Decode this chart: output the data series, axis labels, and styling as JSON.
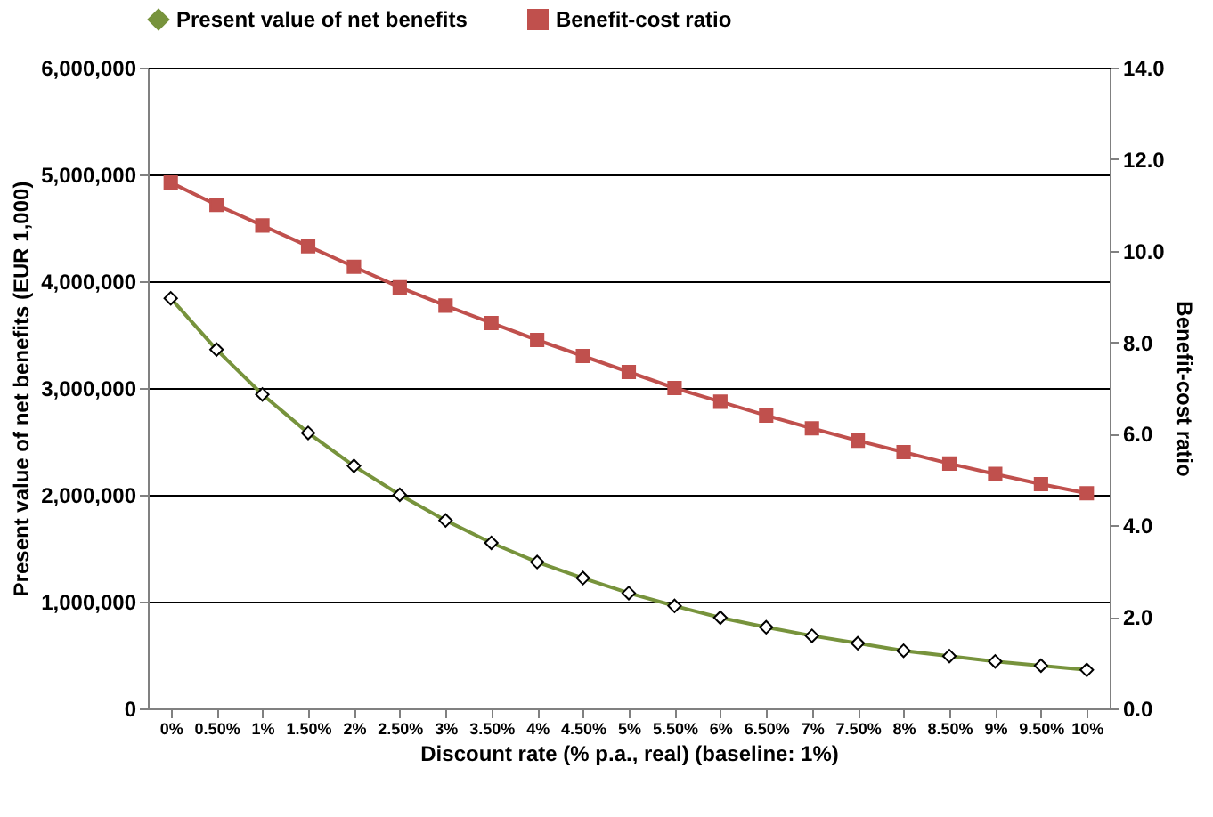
{
  "chart_data": {
    "type": "line",
    "xlabel": "Discount rate (% p.a., real) (baseline: 1%)",
    "ylabel": "Present value of net benefits (EUR 1,000)",
    "y2label": "Benefit-cost ratio",
    "categories": [
      "0%",
      "0.50%",
      "1%",
      "1.50%",
      "2%",
      "2.50%",
      "3%",
      "3.50%",
      "4%",
      "4.50%",
      "5%",
      "5.50%",
      "6%",
      "6.50%",
      "7%",
      "7.50%",
      "8%",
      "8.50%",
      "9%",
      "9.50%",
      "10%"
    ],
    "series": [
      {
        "name": "Present value of net benefits",
        "color": "#77933c",
        "marker": "diamond",
        "values": [
          3840000,
          3360000,
          2940000,
          2580000,
          2270000,
          2000000,
          1760000,
          1550000,
          1370000,
          1220000,
          1080000,
          960000,
          850000,
          760000,
          680000,
          610000,
          540000,
          490000,
          440000,
          400000,
          360000
        ]
      },
      {
        "name": "Benefit-cost ratio",
        "color": "#c0504d",
        "marker": "square",
        "axis": "y2",
        "values": [
          11.49,
          11.0,
          10.55,
          10.1,
          9.65,
          9.2,
          8.8,
          8.42,
          8.05,
          7.7,
          7.35,
          7.0,
          6.7,
          6.4,
          6.12,
          5.85,
          5.6,
          5.35,
          5.12,
          4.9,
          4.7
        ]
      }
    ],
    "ylim": [
      0,
      6000000
    ],
    "yticks": [
      {
        "value": 0,
        "label": "0"
      },
      {
        "value": 1000000,
        "label": "1,000,000"
      },
      {
        "value": 2000000,
        "label": "2,000,000"
      },
      {
        "value": 3000000,
        "label": "3,000,000"
      },
      {
        "value": 4000000,
        "label": "4,000,000"
      },
      {
        "value": 5000000,
        "label": "5,000,000"
      },
      {
        "value": 6000000,
        "label": "6,000,000"
      }
    ],
    "y2lim": [
      0,
      14
    ],
    "y2ticks": [
      {
        "value": 0,
        "label": "0.0"
      },
      {
        "value": 2,
        "label": "2.0"
      },
      {
        "value": 4,
        "label": "4.0"
      },
      {
        "value": 6,
        "label": "6.0"
      },
      {
        "value": 8,
        "label": "8.0"
      },
      {
        "value": 10,
        "label": "10.0"
      },
      {
        "value": 12,
        "label": "12.0"
      },
      {
        "value": 14,
        "label": "14.0"
      }
    ],
    "grid": "y",
    "legend": "top",
    "line_style": "solid"
  }
}
